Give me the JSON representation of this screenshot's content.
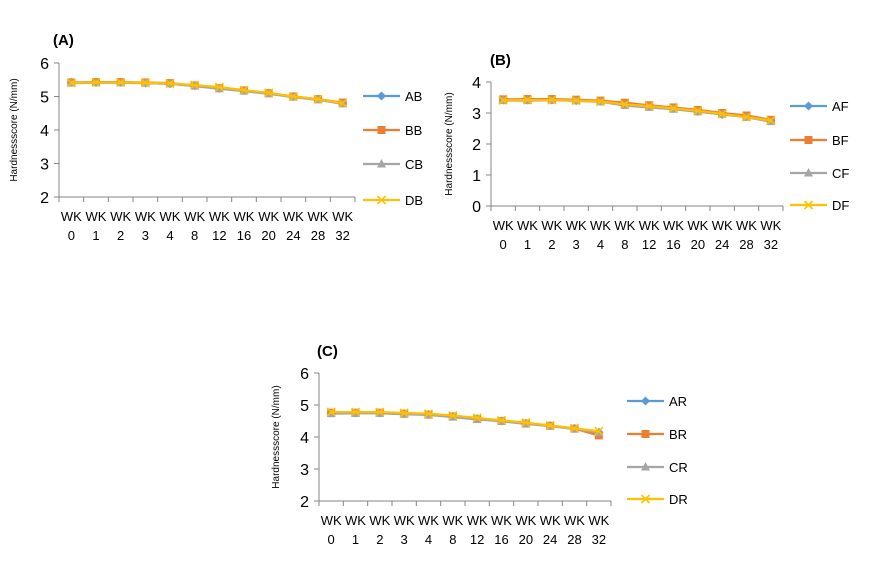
{
  "colors": {
    "series": [
      "#5B9BD5",
      "#ED7D31",
      "#A5A5A5",
      "#FFC000"
    ],
    "axis": "#868686",
    "text": "#000000"
  },
  "markers": [
    "diamond-icon",
    "square-icon",
    "triangle-icon",
    "x-icon"
  ],
  "chart_data": [
    {
      "type": "line",
      "panel": "(A)",
      "title": "",
      "ylabel": "Hardnessscore (N/mm)",
      "xlabel": "",
      "ylim": [
        2,
        6
      ],
      "yticks": [
        2,
        3,
        4,
        5,
        6
      ],
      "grid": false,
      "legend_position": "right",
      "categories": [
        "WK 0",
        "WK 1",
        "WK 2",
        "WK 3",
        "WK 4",
        "WK 8",
        "WK 12",
        "WK 16",
        "WK 20",
        "WK 24",
        "WK 28",
        "WK 32"
      ],
      "series": [
        {
          "name": "AB",
          "values": [
            5.42,
            5.42,
            5.42,
            5.4,
            5.38,
            5.32,
            5.24,
            5.18,
            5.1,
            5.0,
            4.92,
            4.8
          ]
        },
        {
          "name": "BB",
          "values": [
            5.42,
            5.43,
            5.43,
            5.42,
            5.4,
            5.33,
            5.25,
            5.18,
            5.1,
            5.0,
            4.92,
            4.82
          ]
        },
        {
          "name": "CB",
          "values": [
            5.4,
            5.41,
            5.41,
            5.4,
            5.38,
            5.31,
            5.23,
            5.16,
            5.08,
            4.98,
            4.9,
            4.78
          ]
        },
        {
          "name": "DB",
          "values": [
            5.41,
            5.42,
            5.42,
            5.41,
            5.39,
            5.34,
            5.28,
            5.19,
            5.11,
            5.0,
            4.92,
            4.8
          ]
        }
      ]
    },
    {
      "type": "line",
      "panel": "(B)",
      "title": "",
      "ylabel": "Hardnessscore (N/mm)",
      "xlabel": "",
      "ylim": [
        0,
        4
      ],
      "yticks": [
        0,
        1,
        2,
        3,
        4
      ],
      "grid": false,
      "legend_position": "right",
      "categories": [
        "WK 0",
        "WK 1",
        "WK 2",
        "WK 3",
        "WK 4",
        "WK 8",
        "WK 12",
        "WK 16",
        "WK 20",
        "WK 24",
        "WK 28",
        "WK 32"
      ],
      "series": [
        {
          "name": "AF",
          "values": [
            3.42,
            3.42,
            3.42,
            3.4,
            3.38,
            3.28,
            3.2,
            3.14,
            3.05,
            2.95,
            2.88,
            2.75
          ]
        },
        {
          "name": "BF",
          "values": [
            3.44,
            3.45,
            3.45,
            3.43,
            3.4,
            3.33,
            3.25,
            3.18,
            3.1,
            3.0,
            2.92,
            2.78
          ]
        },
        {
          "name": "CF",
          "values": [
            3.4,
            3.4,
            3.41,
            3.39,
            3.36,
            3.24,
            3.18,
            3.12,
            3.04,
            2.96,
            2.86,
            2.72
          ]
        },
        {
          "name": "DF",
          "values": [
            3.41,
            3.42,
            3.42,
            3.4,
            3.37,
            3.28,
            3.22,
            3.15,
            3.07,
            2.97,
            2.87,
            2.76
          ]
        }
      ]
    },
    {
      "type": "line",
      "panel": "(C)",
      "title": "",
      "ylabel": "Hardnessscore (N/mm)",
      "xlabel": "",
      "ylim": [
        2,
        6
      ],
      "yticks": [
        2,
        3,
        4,
        5,
        6
      ],
      "grid": false,
      "legend_position": "right",
      "categories": [
        "WK 0",
        "WK 1",
        "WK 2",
        "WK 3",
        "WK 4",
        "WK 8",
        "WK 12",
        "WK 16",
        "WK 20",
        "WK 24",
        "WK 28",
        "WK 32"
      ],
      "series": [
        {
          "name": "AR",
          "values": [
            4.75,
            4.75,
            4.75,
            4.72,
            4.7,
            4.65,
            4.58,
            4.5,
            4.43,
            4.36,
            4.27,
            4.15
          ]
        },
        {
          "name": "BR",
          "values": [
            4.76,
            4.76,
            4.76,
            4.73,
            4.7,
            4.64,
            4.56,
            4.5,
            4.42,
            4.35,
            4.26,
            4.05
          ]
        },
        {
          "name": "CR",
          "values": [
            4.73,
            4.74,
            4.74,
            4.71,
            4.69,
            4.62,
            4.55,
            4.49,
            4.41,
            4.34,
            4.25,
            4.13
          ]
        },
        {
          "name": "DR",
          "values": [
            4.78,
            4.78,
            4.78,
            4.75,
            4.73,
            4.67,
            4.6,
            4.52,
            4.45,
            4.36,
            4.27,
            4.18
          ]
        }
      ]
    }
  ]
}
